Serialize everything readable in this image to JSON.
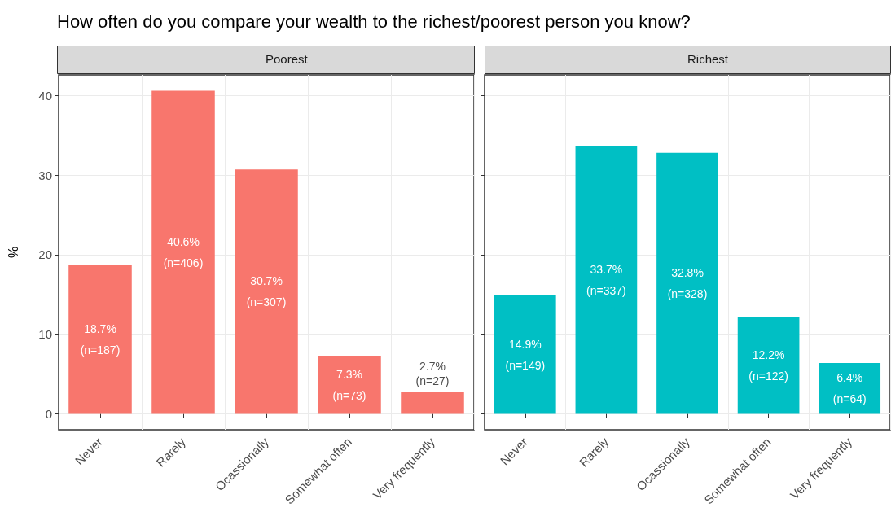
{
  "chart_data": [
    {
      "type": "bar",
      "title": "How often do you compare your wealth to the richest/poorest person you know?",
      "subtitle": "Poorest",
      "ylabel": "%",
      "categories": [
        "Never",
        "Rarely",
        "Ocassionally",
        "Somewhat often",
        "Very frequently"
      ],
      "values": [
        18.7,
        40.6,
        30.7,
        7.3,
        2.7
      ],
      "color": "#f8766d",
      "value_labels": [
        "18.7%\n(n=187)",
        "40.6%\n(n=406)",
        "30.7%\n(n=307)",
        "7.3%\n(n=73)",
        "2.7%\n(n=27)"
      ],
      "ylim": [
        -2,
        42.6
      ],
      "yticks": [
        0,
        10,
        20,
        30,
        40
      ],
      "grid": true
    },
    {
      "type": "bar",
      "subtitle": "Richest",
      "categories": [
        "Never",
        "Rarely",
        "Ocassionally",
        "Somewhat often",
        "Very frequently"
      ],
      "values": [
        14.9,
        33.7,
        32.8,
        12.2,
        6.4
      ],
      "color": "#00bfc4",
      "value_labels": [
        "14.9%\n(n=149)",
        "33.7%\n(n=337)",
        "32.8%\n(n=328)",
        "12.2%\n(n=122)",
        "6.4%\n(n=64)"
      ],
      "ylim": [
        -2,
        42.6
      ],
      "yticks": [
        0,
        10,
        20,
        30,
        40
      ],
      "grid": true,
      "tick_labels": "x"
    }
  ]
}
